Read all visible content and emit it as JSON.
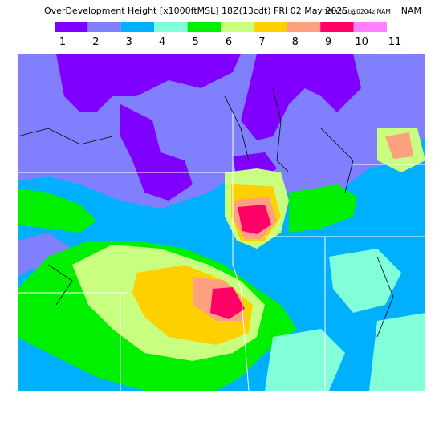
{
  "header": {
    "title": "OverDevelopment Height [x1000ftMSL] 18Z(13cdt) FRI 02 May 2025",
    "forecast": "18hrFcst@0204z NAM"
  },
  "legend": {
    "labels": [
      "1",
      "2",
      "3",
      "4",
      "5",
      "6",
      "7",
      "8",
      "9",
      "10",
      "11"
    ],
    "colors": [
      "#8000ff",
      "#8080ff",
      "#00b0ff",
      "#80ffd8",
      "#00f000",
      "#c8ff80",
      "#ffd000",
      "#ffa080",
      "#ff0066",
      "#ff80ff"
    ]
  }
}
